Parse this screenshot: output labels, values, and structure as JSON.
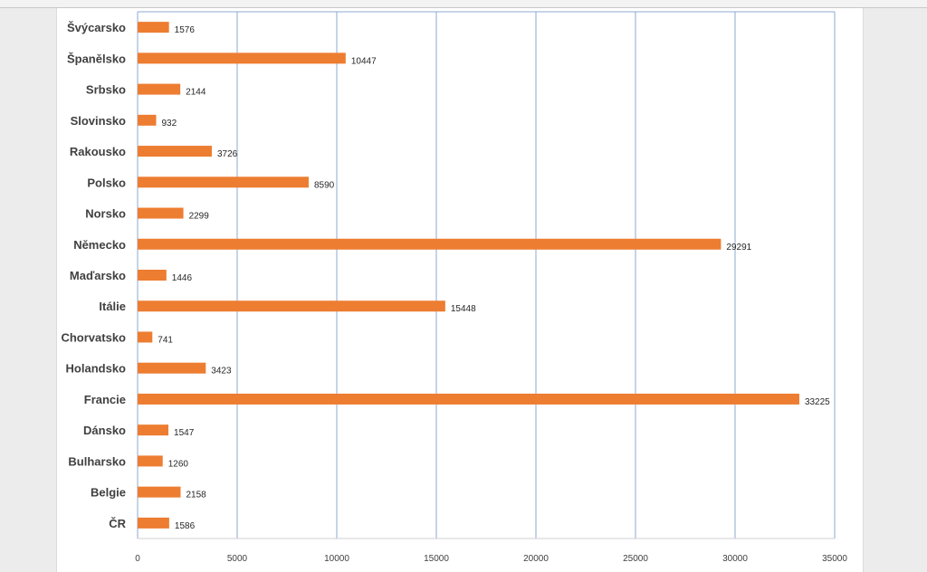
{
  "chart_data": {
    "type": "bar",
    "orientation": "horizontal",
    "categories": [
      "Švýcarsko",
      "Španělsko",
      "Srbsko",
      "Slovinsko",
      "Rakousko",
      "Polsko",
      "Norsko",
      "Německo",
      "Maďarsko",
      "Itálie",
      "Chorvatsko",
      "Holandsko",
      "Francie",
      "Dánsko",
      "Bulharsko",
      "Belgie",
      "ČR"
    ],
    "values": [
      1576,
      10447,
      2144,
      932,
      3726,
      8590,
      2299,
      29291,
      1446,
      15448,
      741,
      3423,
      33225,
      1547,
      1260,
      2158,
      1586
    ],
    "xlim": [
      0,
      35000
    ],
    "xticks": [
      0,
      5000,
      10000,
      15000,
      20000,
      25000,
      30000,
      35000
    ],
    "grid": "vertical",
    "legend": "none",
    "bar_color": "#ed7d31",
    "grid_color": "#8eaad1",
    "data_labels": true
  }
}
